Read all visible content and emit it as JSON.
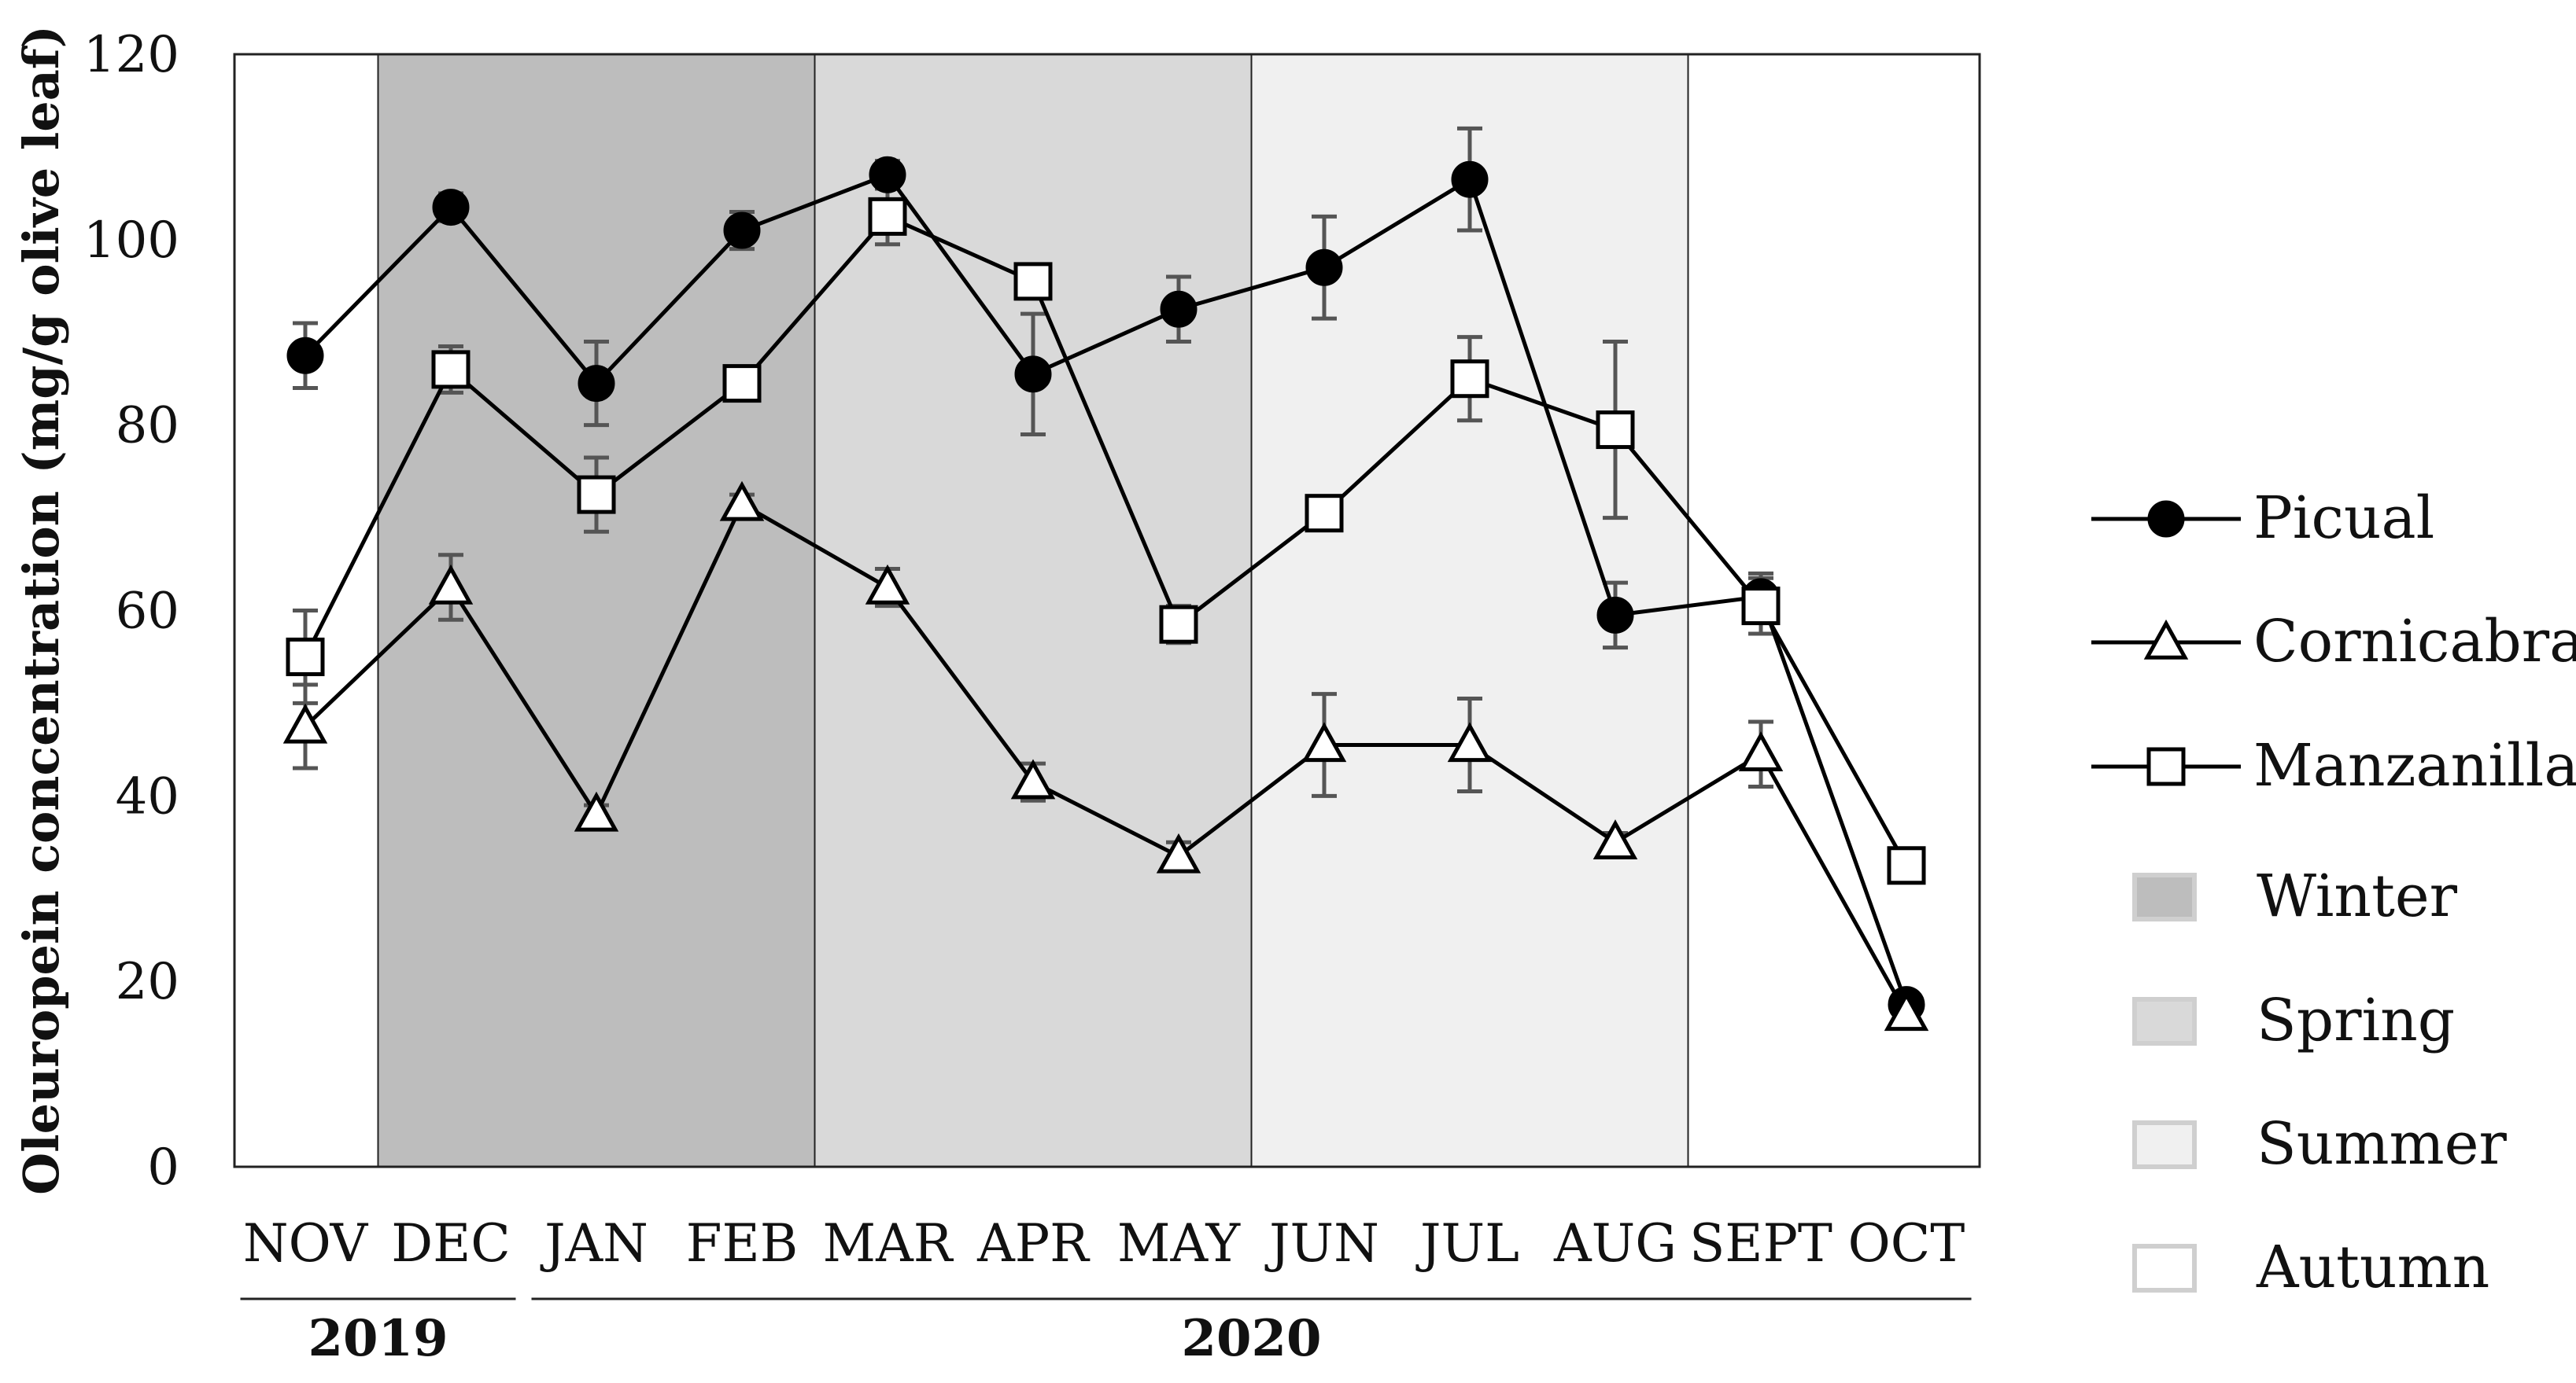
{
  "chart_data": {
    "type": "line",
    "ylabel": "Oleuropein concentration (mg/g olive leaf)",
    "xlabel": "",
    "ylim": [
      0,
      120
    ],
    "yticks": [
      0,
      20,
      40,
      60,
      80,
      100,
      120
    ],
    "categories": [
      "NOV",
      "DEC",
      "JAN",
      "FEB",
      "MAR",
      "APR",
      "MAY",
      "JUN",
      "JUL",
      "AUG",
      "SEPT",
      "OCT"
    ],
    "year_groups": [
      {
        "label": "2019",
        "months": [
          "NOV",
          "DEC"
        ]
      },
      {
        "label": "2020",
        "months": [
          "JAN",
          "FEB",
          "MAR",
          "APR",
          "MAY",
          "JUN",
          "JUL",
          "AUG",
          "SEPT",
          "OCT"
        ]
      }
    ],
    "seasons": [
      {
        "name": "Winter",
        "start": "DEC",
        "end": "MAR",
        "color": "#bdbdbd"
      },
      {
        "name": "Spring",
        "start": "MAR",
        "end": "JUN",
        "color": "#d9d9d9"
      },
      {
        "name": "Summer",
        "start": "JUN",
        "end": "SEPT",
        "color": "#f0f0f0"
      },
      {
        "name": "Autumn",
        "start": "SEPT",
        "end": "OCT",
        "color": "#ffffff"
      }
    ],
    "series": [
      {
        "name": "Picual",
        "marker": "circle",
        "values": [
          87.5,
          103.5,
          84.5,
          101,
          107,
          85.5,
          92.5,
          97,
          106.5,
          59.5,
          61.5,
          17.5
        ],
        "errors": [
          3.5,
          1.5,
          4.5,
          2,
          1.5,
          6.5,
          3.5,
          5.5,
          5.5,
          3.5,
          2.5,
          1
        ]
      },
      {
        "name": "Cornicabra",
        "marker": "triangle",
        "values": [
          47.5,
          62.5,
          38,
          71.5,
          62.5,
          41.5,
          33.5,
          45.5,
          45.5,
          35,
          44.5,
          16.5
        ],
        "errors": [
          4.5,
          3.5,
          1,
          1,
          2,
          2,
          1.5,
          5.5,
          5,
          1,
          3.5,
          1
        ]
      },
      {
        "name": "Manzanilla",
        "marker": "square",
        "values": [
          55,
          86,
          72.5,
          84.5,
          102.5,
          95.5,
          58.5,
          70.5,
          85,
          79.5,
          60.5,
          32.5
        ],
        "errors": [
          5,
          2.5,
          4,
          1,
          3,
          1,
          2,
          0,
          4.5,
          9.5,
          3,
          1
        ]
      }
    ],
    "legend_position": "right"
  }
}
